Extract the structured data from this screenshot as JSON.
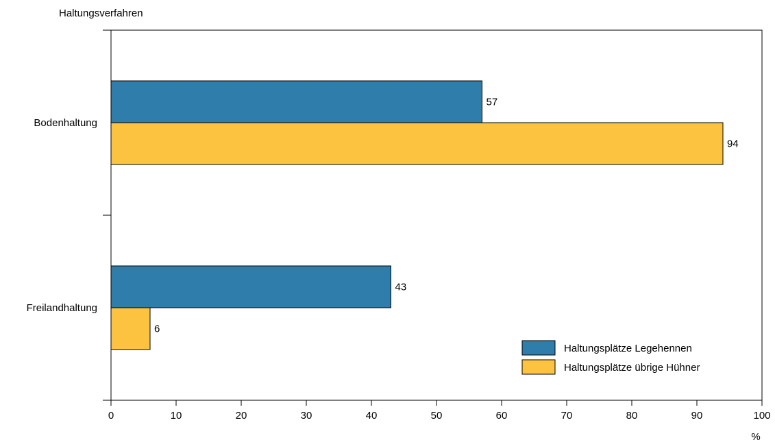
{
  "chart_data": {
    "type": "bar",
    "orientation": "horizontal",
    "ylabel": "Haltungsverfahren",
    "xlabel": "%",
    "categories": [
      "Bodenhaltung",
      "Freilandhaltung"
    ],
    "series": [
      {
        "name": "Haltungsplätze Legehennen",
        "color": "#2e7dab",
        "values": [
          57,
          43
        ]
      },
      {
        "name": "Haltungsplätze übrige Hühner",
        "color": "#fbc33f",
        "values": [
          94,
          6
        ]
      }
    ],
    "xlim": [
      0,
      100
    ],
    "xticks": [
      0,
      10,
      20,
      30,
      40,
      50,
      60,
      70,
      80,
      90,
      100
    ],
    "grid": false,
    "legend_position": "bottom-right",
    "data_labels": true
  }
}
